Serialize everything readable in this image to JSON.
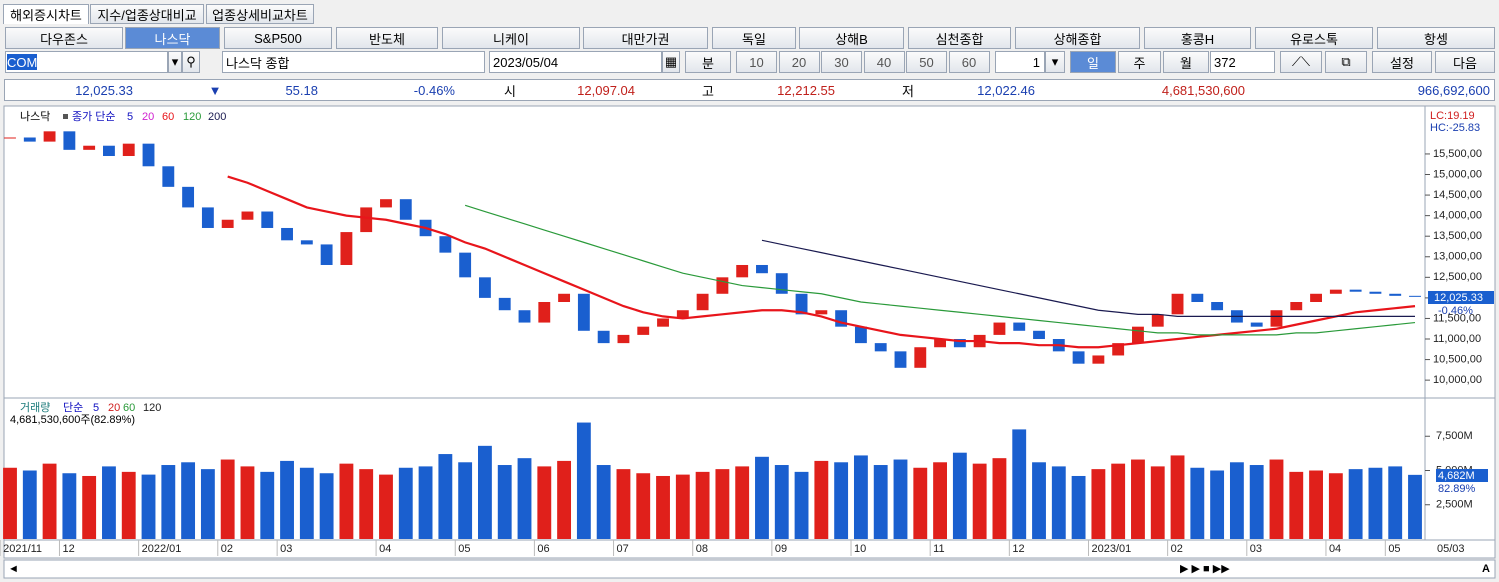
{
  "ui": {
    "tabs": [
      "해외증시차트",
      "지수/업종상대비교",
      "업종상세비교차트"
    ],
    "indices": [
      "다우존스",
      "나스닥",
      "S&P500",
      "반도체",
      "니케이",
      "대만가권",
      "독일",
      "상해B",
      "심천종합",
      "상해종합",
      "홍콩H",
      "유로스톡",
      "항셍"
    ],
    "toolbar": {
      "code": "COMP",
      "name": "나스닥 종합",
      "date": "2023/05/04",
      "unit": "분",
      "intervals": [
        "10",
        "20",
        "30",
        "40",
        "50",
        "60"
      ],
      "count": "1",
      "day": "일",
      "week": "주",
      "month": "월",
      "bars": "372",
      "settings": "설정",
      "next": "다음"
    },
    "quote": {
      "last": "12,025.33",
      "arrow": "▼",
      "change": "55.18",
      "change_pct": "-0.46%",
      "open_label": "시",
      "open": "12,097.04",
      "high_label": "고",
      "high": "12,212.55",
      "low_label": "저",
      "low": "12,022.46",
      "volume": "4,681,530,600",
      "amount": "966,692,600"
    },
    "x_last": "05/03",
    "scroll_a": "A"
  },
  "chart_data": [
    {
      "type": "candlestick",
      "title": "나스닥",
      "ma_method": "종가 단순",
      "lc": "LC:19.19",
      "hc": "HC:-25.83",
      "current_label": "12,025.33",
      "current_pct": "-0.46%",
      "up_color": "#e0201b",
      "down_color": "#1a5fcf",
      "ma_legend_extra": [
        {
          "name": "5",
          "color": "#1010c0"
        },
        {
          "name": "20",
          "color": "#d020d0"
        }
      ],
      "categories": [
        "2021/11",
        null,
        null,
        "12",
        null,
        null,
        null,
        "2022/01",
        null,
        null,
        null,
        "02",
        null,
        null,
        "03",
        null,
        null,
        null,
        null,
        "04",
        null,
        null,
        null,
        "05",
        null,
        null,
        null,
        "06",
        null,
        null,
        null,
        "07",
        null,
        null,
        null,
        "08",
        null,
        null,
        null,
        "09",
        null,
        null,
        null,
        "10",
        null,
        null,
        null,
        "11",
        null,
        null,
        null,
        "12",
        null,
        null,
        null,
        "2023/01",
        null,
        null,
        null,
        "02",
        null,
        null,
        null,
        "03",
        null,
        null,
        null,
        "04",
        null,
        null,
        "05",
        null
      ],
      "series": [
        {
          "name": "종가",
          "values": [
            15900,
            15800,
            16050,
            15600,
            15700,
            15450,
            15750,
            15200,
            14700,
            14200,
            13700,
            13900,
            14100,
            13700,
            13400,
            13300,
            12800,
            13600,
            14200,
            14400,
            13900,
            13500,
            13100,
            12500,
            12000,
            11700,
            11400,
            11900,
            12100,
            11200,
            10900,
            11100,
            11300,
            11500,
            11700,
            12100,
            12500,
            12800,
            12600,
            12100,
            11600,
            11700,
            11300,
            10900,
            10700,
            10300,
            10800,
            11000,
            10800,
            11100,
            11400,
            11200,
            11000,
            10700,
            10400,
            10600,
            10900,
            11300,
            11600,
            12100,
            11900,
            11700,
            11400,
            11300,
            11700,
            11900,
            12100,
            12200,
            12150,
            12100,
            12050,
            12025.33
          ]
        },
        {
          "name": "60",
          "color": "#e8151b",
          "values": [
            null,
            null,
            null,
            null,
            null,
            null,
            null,
            null,
            null,
            null,
            null,
            14950,
            14800,
            14600,
            14400,
            14200,
            14100,
            14000,
            13950,
            13900,
            13800,
            13700,
            13550,
            13350,
            13200,
            13000,
            12800,
            12600,
            12400,
            12200,
            12000,
            11800,
            11650,
            11550,
            11500,
            11550,
            11600,
            11650,
            11700,
            11700,
            11650,
            11550,
            11400,
            11300,
            11200,
            11100,
            11050,
            11000,
            10950,
            10950,
            10900,
            10900,
            10850,
            10850,
            10800,
            10800,
            10850,
            10900,
            10950,
            11000,
            11050,
            11100,
            11150,
            11200,
            11250,
            11350,
            11450,
            11550,
            11650,
            11700,
            11750,
            11800
          ]
        },
        {
          "name": "120",
          "color": "#2a9a3a",
          "values": [
            null,
            null,
            null,
            null,
            null,
            null,
            null,
            null,
            null,
            null,
            null,
            null,
            null,
            null,
            null,
            null,
            null,
            null,
            null,
            null,
            null,
            null,
            null,
            14250,
            14100,
            13950,
            13800,
            13650,
            13500,
            13350,
            13200,
            13050,
            12900,
            12750,
            12600,
            12500,
            12400,
            12300,
            12250,
            12200,
            12150,
            12100,
            12000,
            11900,
            11850,
            11800,
            11750,
            11700,
            11650,
            11600,
            11550,
            11500,
            11450,
            11400,
            11350,
            11300,
            11250,
            11200,
            11150,
            11150,
            11100,
            11100,
            11100,
            11100,
            11100,
            11150,
            11150,
            11200,
            11250,
            11300,
            11350,
            11400
          ]
        },
        {
          "name": "200",
          "color": "#1a1a50",
          "values": [
            null,
            null,
            null,
            null,
            null,
            null,
            null,
            null,
            null,
            null,
            null,
            null,
            null,
            null,
            null,
            null,
            null,
            null,
            null,
            null,
            null,
            null,
            null,
            null,
            null,
            null,
            null,
            null,
            null,
            null,
            null,
            null,
            null,
            null,
            null,
            null,
            null,
            null,
            13400,
            13300,
            13200,
            13100,
            13000,
            12900,
            12800,
            12700,
            12600,
            12500,
            12400,
            12300,
            12200,
            12100,
            12000,
            11900,
            11800,
            11700,
            11650,
            11600,
            11600,
            11550,
            11550,
            11550,
            11550,
            11550,
            11550,
            11550,
            11550,
            11550,
            11550,
            11550,
            11550,
            11550
          ]
        }
      ],
      "ylim": [
        9590,
        16520
      ],
      "yticks": [
        {
          "value": 10000,
          "label": "10,000,00"
        },
        {
          "value": 10500,
          "label": "10,500,00"
        },
        {
          "value": 11000,
          "label": "11,000,00"
        },
        {
          "value": 11500,
          "label": "11,500,00"
        },
        {
          "value": 12000,
          "label": "12,000,00"
        },
        {
          "value": 12500,
          "label": "12,500,00"
        },
        {
          "value": 13000,
          "label": "13,000,00"
        },
        {
          "value": 13500,
          "label": "13,500,00"
        },
        {
          "value": 14000,
          "label": "14,000,00"
        },
        {
          "value": 14500,
          "label": "14,500,00"
        },
        {
          "value": 15000,
          "label": "15,000,00"
        },
        {
          "value": 15500,
          "label": "15,500,00"
        }
      ]
    },
    {
      "type": "bar",
      "title": "거래량",
      "ma_method": "단순",
      "summary": "4,681,530,600주(82.89%)",
      "current_label": "4,682M",
      "current_pct": "82.89%",
      "ma_legend": [
        {
          "name": "5",
          "color": "#1010c0"
        },
        {
          "name": "20",
          "color": "#d02020"
        },
        {
          "name": "60",
          "color": "#2a9a3a"
        },
        {
          "name": "120",
          "color": "#222222"
        }
      ],
      "values": [
        5200,
        5000,
        5500,
        4800,
        4600,
        5300,
        4900,
        4700,
        5400,
        5600,
        5100,
        5800,
        5300,
        4900,
        5700,
        5200,
        4800,
        5500,
        5100,
        4700,
        5200,
        5300,
        6200,
        5600,
        6800,
        5400,
        5900,
        5300,
        5700,
        8500,
        5400,
        5100,
        4800,
        4600,
        4700,
        4900,
        5100,
        5300,
        6000,
        5400,
        4900,
        5700,
        5600,
        6100,
        5400,
        5800,
        5200,
        5600,
        6300,
        5500,
        5900,
        8000,
        5600,
        5300,
        4600,
        5100,
        5500,
        5800,
        5300,
        6100,
        5200,
        5000,
        5600,
        5400,
        5800,
        4900,
        5000,
        4800,
        5100,
        5200,
        5300,
        4682
      ],
      "ylim": [
        0,
        10000
      ],
      "yticks": [
        {
          "value": 2500,
          "label": "2,500M"
        },
        {
          "value": 5000,
          "label": "5,000M"
        },
        {
          "value": 7500,
          "label": "7,500M"
        }
      ]
    }
  ]
}
